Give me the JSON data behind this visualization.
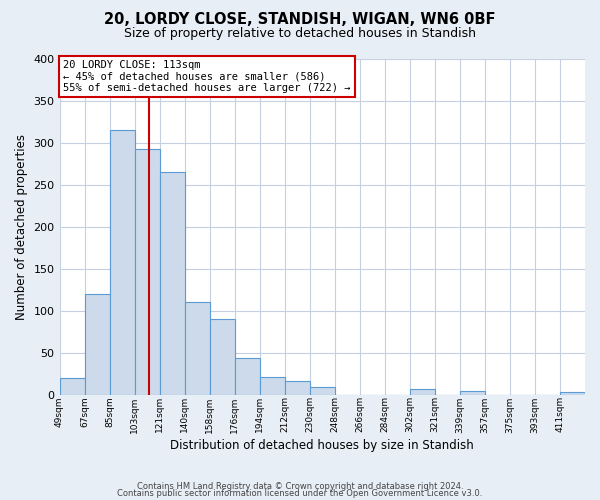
{
  "title": "20, LORDY CLOSE, STANDISH, WIGAN, WN6 0BF",
  "subtitle": "Size of property relative to detached houses in Standish",
  "xlabel": "Distribution of detached houses by size in Standish",
  "ylabel": "Number of detached properties",
  "footer_line1": "Contains HM Land Registry data © Crown copyright and database right 2024.",
  "footer_line2": "Contains public sector information licensed under the Open Government Licence v3.0.",
  "bin_labels": [
    "49sqm",
    "67sqm",
    "85sqm",
    "103sqm",
    "121sqm",
    "140sqm",
    "158sqm",
    "176sqm",
    "194sqm",
    "212sqm",
    "230sqm",
    "248sqm",
    "266sqm",
    "284sqm",
    "302sqm",
    "321sqm",
    "339sqm",
    "357sqm",
    "375sqm",
    "393sqm",
    "411sqm"
  ],
  "bar_heights": [
    20,
    120,
    315,
    293,
    265,
    110,
    90,
    44,
    21,
    17,
    9,
    0,
    0,
    0,
    7,
    0,
    4,
    0,
    0,
    0,
    3
  ],
  "bar_color": "#ccdaeb",
  "bar_edge_color": "#5b9bd5",
  "vline_x_bin_index": 3,
  "vline_color": "#cc0000",
  "annotation_title": "20 LORDY CLOSE: 113sqm",
  "annotation_line1": "← 45% of detached houses are smaller (586)",
  "annotation_line2": "55% of semi-detached houses are larger (722) →",
  "annotation_box_color": "#ffffff",
  "annotation_box_edge": "#cc0000",
  "ylim": [
    0,
    400
  ],
  "background_color": "#e8eef5",
  "plot_bg_color": "#ffffff",
  "grid_color": "#c5cfe0"
}
